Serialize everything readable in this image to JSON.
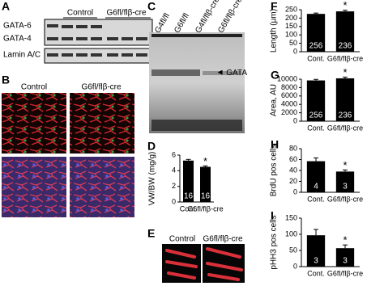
{
  "figure": {
    "panel_labels": [
      "A",
      "B",
      "C",
      "D",
      "E",
      "F",
      "G",
      "H",
      "I"
    ],
    "blot": {
      "group_labels": [
        "Control",
        "G6fl/flβ-cre"
      ],
      "row_labels": [
        "GATA-6",
        "GATA-4",
        "Lamin A/C"
      ]
    },
    "micrographs_b": {
      "group_labels": [
        "Control",
        "G6fl/flβ-cre"
      ]
    },
    "micrographs_e": {
      "group_labels": [
        "Control",
        "G6fl/flβ-cre"
      ]
    },
    "gel": {
      "lane_labels": [
        "G4fl/fl",
        "G6fl/fl",
        "G4fl/flβ-cre",
        "G6fl/flβ-cre"
      ],
      "band_label": "GATA"
    }
  },
  "chart_data": [
    {
      "type": "bar",
      "y_label": "VW/BW (mg/g)",
      "categories": [
        "Cont.",
        "G6fl/flβ-cre"
      ],
      "values": [
        5.3,
        4.5
      ],
      "errors": [
        0.15,
        0.12
      ],
      "n_labels": [
        "16",
        "16"
      ],
      "annotations": [
        {
          "text": "*",
          "category": "G6fl/flβ-cre"
        }
      ],
      "color": "#000000",
      "ylim": [
        0,
        6
      ],
      "yticks": [
        0,
        2,
        4,
        6
      ]
    },
    {
      "type": "bar",
      "y_label": "Length (μm)",
      "categories": [
        "Cont.",
        "G6fl/flβ-cre"
      ],
      "values": [
        225,
        240
      ],
      "errors": [
        5,
        7
      ],
      "n_labels": [
        "256",
        "236"
      ],
      "annotations": [
        {
          "text": "*",
          "category": "G6fl/flβ-cre"
        }
      ],
      "color": "#000000",
      "ylim": [
        0,
        250
      ],
      "yticks": [
        0,
        50,
        100,
        150,
        200,
        250
      ]
    },
    {
      "type": "bar",
      "y_label": "Area, AU",
      "categories": [
        "Cont.",
        "G6fl/flβ-cre"
      ],
      "values": [
        9700,
        10200
      ],
      "errors": [
        250,
        300
      ],
      "n_labels": [
        "256",
        "236"
      ],
      "annotations": [
        {
          "text": "*",
          "category": "G6fl/flβ-cre"
        }
      ],
      "color": "#000000",
      "ylim": [
        0,
        10000
      ],
      "yticks": [
        0,
        2000,
        4000,
        6000,
        8000,
        10000
      ]
    },
    {
      "type": "bar",
      "y_label": "BrdU pos cells",
      "categories": [
        "Cont.",
        "G6fl/flβ-cre"
      ],
      "values": [
        57,
        38
      ],
      "errors": [
        6,
        3
      ],
      "n_labels": [
        "4",
        "3"
      ],
      "annotations": [
        {
          "text": "*",
          "category": "G6fl/flβ-cre"
        }
      ],
      "color": "#000000",
      "ylim": [
        0,
        80
      ],
      "yticks": [
        0,
        20,
        40,
        60,
        80
      ]
    },
    {
      "type": "bar",
      "y_label": "pHH3 pos cells",
      "categories": [
        "Cont.",
        "G6fl/flβ-cre"
      ],
      "values": [
        97,
        57
      ],
      "errors": [
        18,
        10
      ],
      "n_labels": [
        "3",
        "3"
      ],
      "annotations": [
        {
          "text": "*",
          "category": "G6fl/flβ-cre"
        }
      ],
      "color": "#000000",
      "ylim": [
        0,
        150
      ],
      "yticks": [
        0,
        50,
        100,
        150
      ]
    }
  ]
}
